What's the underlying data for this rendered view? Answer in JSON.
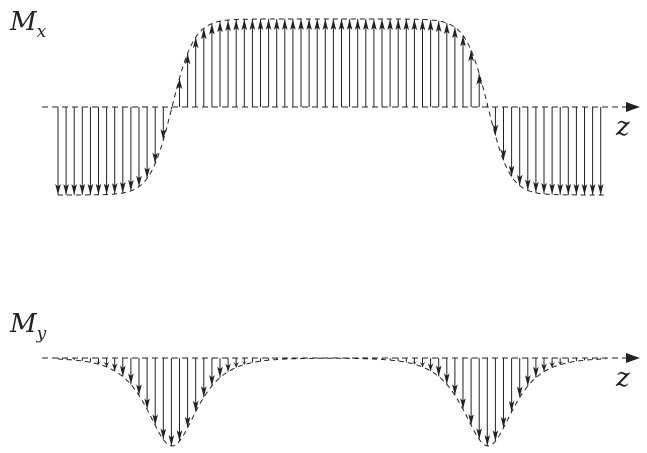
{
  "panels": [
    {
      "id": "mx",
      "label": {
        "main": "M",
        "sub": "x"
      },
      "axis_label": "z",
      "profile": "cos"
    },
    {
      "id": "my",
      "label": {
        "main": "M",
        "sub": "y"
      },
      "axis_label": "z",
      "profile": "sin"
    }
  ],
  "diagram": {
    "kind": "magnetization vector profile along z",
    "domain_walls": 2,
    "colors": {
      "line": "#222222",
      "background": "#ffffff"
    }
  }
}
